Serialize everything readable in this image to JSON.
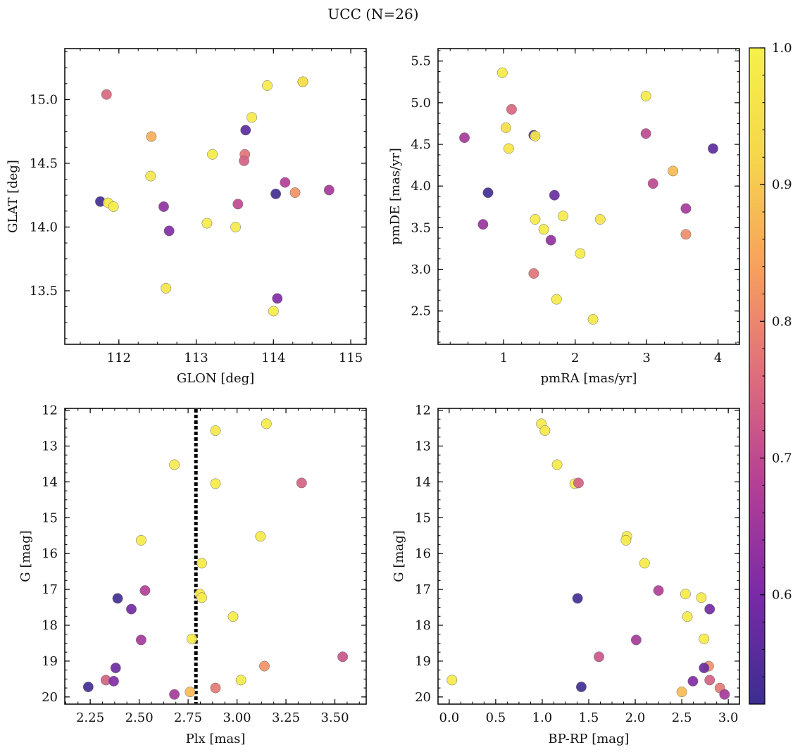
{
  "figure": {
    "title": "UCC (N=26)"
  },
  "colorbar": {
    "min": 0.52,
    "max": 1.0,
    "ticks": [
      0.6,
      0.7,
      0.8,
      0.9,
      1.0
    ],
    "tick_labels": [
      "0.6",
      "0.7",
      "0.8",
      "0.9",
      "1.0"
    ],
    "colormap": "plasma",
    "stops": [
      "#3b2e8f",
      "#7a2aa6",
      "#b33f96",
      "#de6d7c",
      "#f7a05e",
      "#f6d64a",
      "#f5f14a"
    ]
  },
  "chart_data": [
    {
      "id": "glon-glat",
      "type": "scatter",
      "xlabel": "GLON [deg]",
      "ylabel": "GLAT [deg]",
      "xlim": [
        111.3,
        115.2
      ],
      "ylim": [
        13.08,
        15.4
      ],
      "xticks": [
        112,
        113,
        114,
        115
      ],
      "xtick_labels": [
        "112",
        "113",
        "114",
        "115"
      ],
      "yticks": [
        13.5,
        14.0,
        14.5,
        15.0
      ],
      "ytick_labels": [
        "13.5",
        "14.0",
        "14.5",
        "15.0"
      ],
      "x": [
        114.38,
        113.92,
        111.84,
        113.72,
        113.64,
        112.42,
        113.21,
        113.63,
        113.62,
        112.41,
        114.15,
        114.72,
        114.03,
        114.28,
        111.76,
        111.86,
        111.93,
        113.54,
        112.58,
        112.65,
        113.14,
        113.51,
        112.61,
        114.05,
        114.0,
        114.38
      ],
      "y": [
        15.14,
        15.11,
        15.04,
        14.86,
        14.76,
        14.71,
        14.57,
        14.57,
        14.52,
        14.4,
        14.35,
        14.29,
        14.26,
        14.27,
        14.2,
        14.19,
        14.16,
        14.18,
        14.16,
        13.97,
        14.03,
        14.0,
        13.52,
        13.44,
        13.34,
        15.14
      ],
      "c": [
        0.97,
        0.98,
        0.75,
        0.98,
        0.56,
        0.86,
        0.98,
        0.77,
        0.74,
        0.97,
        0.68,
        0.66,
        0.53,
        0.82,
        0.53,
        0.98,
        0.98,
        0.7,
        0.63,
        0.61,
        0.98,
        0.98,
        0.96,
        0.61,
        0.98,
        0.95
      ]
    },
    {
      "id": "pmra-pmde",
      "type": "scatter",
      "xlabel": "pmRA [mas/yr]",
      "ylabel": "pmDE [mas/yr]",
      "xlim": [
        0.08,
        4.3
      ],
      "ylim": [
        2.1,
        5.65
      ],
      "xticks": [
        1,
        2,
        3,
        4
      ],
      "xtick_labels": [
        "1",
        "2",
        "3",
        "4"
      ],
      "yticks": [
        2.5,
        3.0,
        3.5,
        4.0,
        4.5,
        5.0,
        5.5
      ],
      "ytick_labels": [
        "2.5",
        "3.0",
        "3.5",
        "4.0",
        "4.5",
        "5.0",
        "5.5"
      ],
      "x": [
        0.98,
        2.99,
        1.11,
        1.03,
        2.99,
        1.42,
        1.44,
        0.45,
        1.07,
        3.93,
        3.37,
        3.09,
        0.78,
        1.71,
        3.55,
        1.83,
        2.35,
        1.44,
        0.71,
        1.56,
        3.55,
        1.66,
        2.07,
        1.42,
        1.74,
        2.25
      ],
      "y": [
        5.36,
        5.08,
        4.92,
        4.7,
        4.63,
        4.61,
        4.6,
        4.58,
        4.45,
        4.45,
        4.18,
        4.03,
        3.92,
        3.89,
        3.73,
        3.64,
        3.6,
        3.6,
        3.54,
        3.48,
        3.42,
        3.35,
        3.19,
        2.95,
        2.64,
        2.4
      ],
      "c": [
        0.98,
        0.98,
        0.75,
        0.94,
        0.7,
        0.56,
        0.98,
        0.66,
        0.96,
        0.56,
        0.88,
        0.7,
        0.53,
        0.58,
        0.66,
        0.98,
        0.96,
        0.98,
        0.64,
        0.98,
        0.81,
        0.63,
        0.98,
        0.77,
        0.98,
        0.97
      ]
    },
    {
      "id": "plx-g",
      "type": "scatter",
      "xlabel": "Plx [mas]",
      "ylabel": "G [mag]",
      "xlim": [
        2.12,
        3.66
      ],
      "ylim": [
        20.2,
        11.95
      ],
      "y_inverted": true,
      "vline": {
        "x": 2.79,
        "style": "dotted"
      },
      "xticks": [
        2.25,
        2.5,
        2.75,
        3.0,
        3.25,
        3.5
      ],
      "xtick_labels": [
        "2.25",
        "2.50",
        "2.75",
        "3.00",
        "3.25",
        "3.50"
      ],
      "yticks": [
        12,
        13,
        14,
        15,
        16,
        17,
        18,
        19,
        20
      ],
      "ytick_labels": [
        "12",
        "13",
        "14",
        "15",
        "16",
        "17",
        "18",
        "19",
        "20"
      ],
      "x": [
        3.15,
        2.89,
        2.68,
        2.89,
        3.33,
        3.12,
        2.51,
        2.82,
        2.53,
        2.81,
        2.82,
        2.39,
        2.46,
        2.98,
        2.51,
        2.77,
        3.54,
        3.14,
        2.38,
        2.33,
        2.37,
        3.02,
        2.24,
        2.89,
        2.76,
        2.68
      ],
      "y": [
        12.38,
        12.57,
        13.52,
        14.05,
        14.03,
        15.52,
        15.63,
        16.27,
        17.03,
        17.13,
        17.23,
        17.25,
        17.55,
        17.76,
        18.41,
        18.38,
        18.88,
        19.14,
        19.19,
        19.53,
        19.56,
        19.53,
        19.72,
        19.75,
        19.86,
        19.93
      ],
      "c": [
        0.98,
        0.97,
        0.98,
        0.98,
        0.74,
        0.98,
        0.98,
        0.98,
        0.68,
        0.98,
        0.98,
        0.53,
        0.59,
        0.98,
        0.66,
        0.98,
        0.72,
        0.82,
        0.58,
        0.74,
        0.61,
        0.98,
        0.53,
        0.78,
        0.88,
        0.66
      ]
    },
    {
      "id": "bprp-g",
      "type": "scatter",
      "xlabel": "BP-RP [mag]",
      "ylabel": "G [mag]",
      "xlim": [
        -0.12,
        3.12
      ],
      "ylim": [
        20.2,
        11.95
      ],
      "y_inverted": true,
      "xticks": [
        0.0,
        0.5,
        1.0,
        1.5,
        2.0,
        2.5,
        3.0
      ],
      "xtick_labels": [
        "0.0",
        "0.5",
        "1.0",
        "1.5",
        "2.0",
        "2.5",
        "3.0"
      ],
      "yticks": [
        12,
        13,
        14,
        15,
        16,
        17,
        18,
        19,
        20
      ],
      "ytick_labels": [
        "12",
        "13",
        "14",
        "15",
        "16",
        "17",
        "18",
        "19",
        "20"
      ],
      "x": [
        0.99,
        1.03,
        1.16,
        1.35,
        1.39,
        1.91,
        1.9,
        2.1,
        2.25,
        2.54,
        2.71,
        1.38,
        2.8,
        2.56,
        2.01,
        2.74,
        1.61,
        2.79,
        2.74,
        2.8,
        2.62,
        0.03,
        1.42,
        2.91,
        2.5,
        2.96
      ],
      "y": [
        12.38,
        12.57,
        13.52,
        14.05,
        14.03,
        15.52,
        15.63,
        16.27,
        17.03,
        17.13,
        17.23,
        17.25,
        17.55,
        17.76,
        18.41,
        18.38,
        18.88,
        19.14,
        19.19,
        19.53,
        19.56,
        19.53,
        19.72,
        19.75,
        19.86,
        19.93
      ],
      "c": [
        0.98,
        0.97,
        0.98,
        0.98,
        0.74,
        0.98,
        0.98,
        0.98,
        0.68,
        0.98,
        0.98,
        0.53,
        0.59,
        0.98,
        0.66,
        0.98,
        0.72,
        0.82,
        0.58,
        0.74,
        0.61,
        0.98,
        0.53,
        0.78,
        0.88,
        0.66
      ]
    }
  ]
}
